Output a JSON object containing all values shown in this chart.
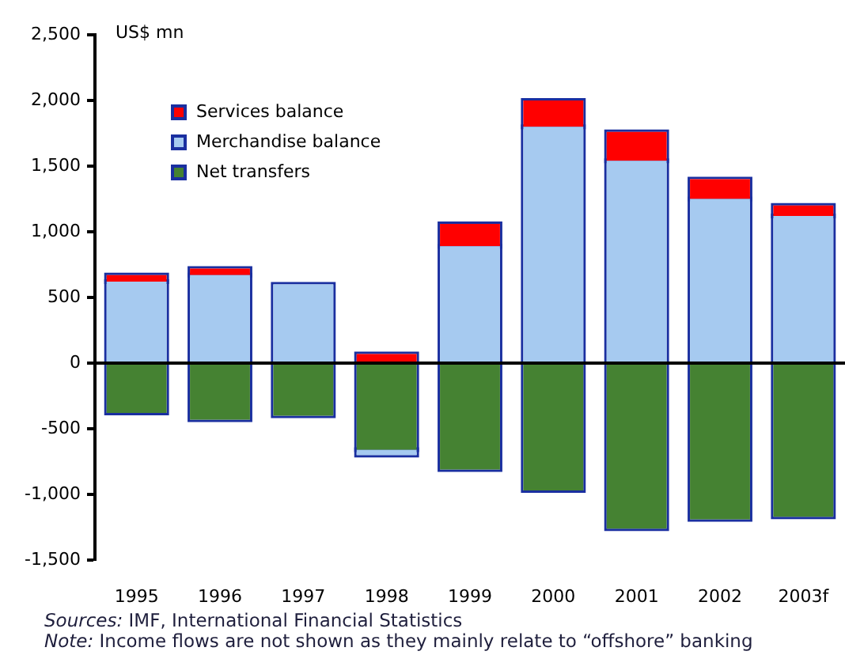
{
  "chart_data": {
    "type": "bar",
    "stacked": true,
    "categories": [
      "1995",
      "1996",
      "1997",
      "1998",
      "1999",
      "2000",
      "2001",
      "2002",
      "2003f"
    ],
    "series": [
      {
        "name": "Net transfers",
        "color": "#458232",
        "values": [
          -380,
          -430,
          -400,
          -660,
          -810,
          -970,
          -1260,
          -1190,
          -1170
        ]
      },
      {
        "name": "Merchandise balance",
        "color": "#a6caf0",
        "values": [
          620,
          670,
          600,
          -40,
          890,
          1800,
          1540,
          1250,
          1120
        ]
      },
      {
        "name": "Services balance",
        "color": "#ff0000",
        "values": [
          50,
          50,
          0,
          70,
          170,
          200,
          220,
          150,
          80
        ]
      }
    ],
    "ylabel": "US$ mn",
    "ylim": [
      -1500,
      2500
    ],
    "yticks": [
      {
        "value": -1500,
        "label": "-1,500"
      },
      {
        "value": -1000,
        "label": "-1,000"
      },
      -500,
      0,
      500,
      {
        "value": 1000,
        "label": "1,000"
      },
      {
        "value": 1500,
        "label": "1,500"
      },
      {
        "value": 2000,
        "label": "2,000"
      },
      {
        "value": 2500,
        "label": "2,500"
      }
    ],
    "legend": "top left",
    "annotations": [
      "Sources: IMF, International Financial Statistics",
      "Note: Income flows are not shown as they mainly relate to “offshore” banking"
    ]
  }
}
